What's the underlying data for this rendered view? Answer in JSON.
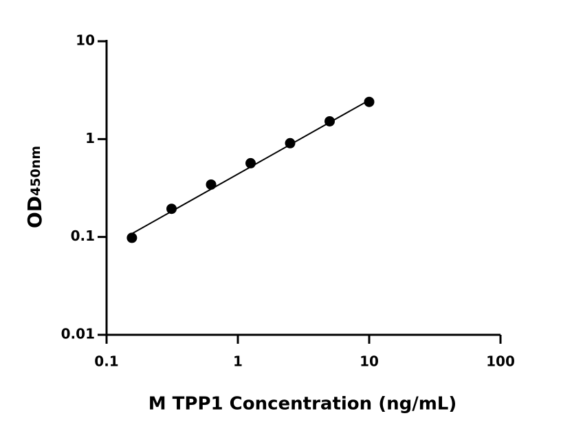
{
  "chart_data": {
    "type": "scatter",
    "x_label": "M TPP1 Concentration (ng/mL)",
    "y_label": {
      "main": "OD",
      "sub": "450nm"
    },
    "x": [
      0.156,
      0.3125,
      0.625,
      1.25,
      2.5,
      5,
      10
    ],
    "values": [
      0.098,
      0.194,
      0.343,
      0.567,
      0.908,
      1.52,
      2.4
    ],
    "color": "#000000",
    "fit": {
      "x": [
        0.156,
        10
      ],
      "values": [
        0.108,
        2.5
      ]
    },
    "xscale": "log",
    "yscale": "log",
    "xlim": [
      0.1,
      100
    ],
    "ylim": [
      0.01,
      10
    ],
    "xticks": [
      0.1,
      1,
      10,
      100
    ],
    "yticks": [
      0.01,
      0.1,
      1,
      10
    ]
  }
}
